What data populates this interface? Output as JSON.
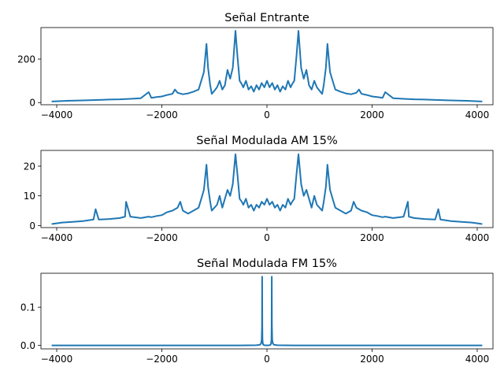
{
  "chart_data": [
    {
      "type": "line",
      "title": "Señal Entrante",
      "xlabel": "",
      "ylabel": "",
      "xlim": [
        -4300,
        4300
      ],
      "ylim": [
        -10,
        345
      ],
      "xticks": [
        -4000,
        -2000,
        0,
        2000,
        4000
      ],
      "xtick_labels": [
        "−4000",
        "−2000",
        "0",
        "2000",
        "4000"
      ],
      "yticks": [
        0,
        200
      ],
      "ytick_labels": [
        "0",
        "200"
      ],
      "grid": false,
      "color": "#1f77b4",
      "series": [
        {
          "x": [
            -4096,
            -3800,
            -3500,
            -3200,
            -3000,
            -2800,
            -2600,
            -2400,
            -2250,
            -2200,
            -2100,
            -2000,
            -1900,
            -1800,
            -1750,
            -1700,
            -1600,
            -1500,
            -1400,
            -1300,
            -1250,
            -1200,
            -1150,
            -1120,
            -1080,
            -1050,
            -1000,
            -950,
            -900,
            -850,
            -800,
            -750,
            -700,
            -650,
            -600,
            -560,
            -520,
            -480,
            -450,
            -400,
            -350,
            -300,
            -250,
            -200,
            -150,
            -100,
            -50,
            0,
            50,
            100,
            150,
            200,
            250,
            300,
            350,
            400,
            450,
            480,
            520,
            560,
            600,
            650,
            700,
            750,
            800,
            850,
            900,
            950,
            1000,
            1050,
            1080,
            1120,
            1150,
            1200,
            1250,
            1300,
            1400,
            1500,
            1600,
            1700,
            1750,
            1800,
            1900,
            2000,
            2100,
            2200,
            2250,
            2400,
            2600,
            2800,
            3000,
            3200,
            3500,
            3800,
            4096
          ],
          "y": [
            5,
            8,
            10,
            12,
            14,
            15,
            17,
            20,
            48,
            22,
            25,
            28,
            35,
            40,
            60,
            45,
            38,
            42,
            50,
            60,
            100,
            140,
            270,
            160,
            80,
            40,
            55,
            70,
            100,
            60,
            80,
            150,
            110,
            160,
            330,
            210,
            100,
            85,
            70,
            100,
            60,
            75,
            50,
            80,
            60,
            90,
            70,
            100,
            70,
            90,
            60,
            80,
            50,
            75,
            60,
            100,
            70,
            85,
            100,
            210,
            330,
            160,
            110,
            150,
            80,
            60,
            100,
            70,
            55,
            40,
            80,
            160,
            270,
            140,
            100,
            60,
            50,
            42,
            38,
            45,
            60,
            40,
            35,
            28,
            25,
            22,
            48,
            20,
            17,
            15,
            14,
            12,
            10,
            8,
            5
          ]
        }
      ]
    },
    {
      "type": "line",
      "title": "Señal Modulada AM 15%",
      "xlabel": "",
      "ylabel": "",
      "xlim": [
        -4300,
        4300
      ],
      "ylim": [
        -0.7,
        25.3
      ],
      "xticks": [
        -4000,
        -2000,
        0,
        2000,
        4000
      ],
      "xtick_labels": [
        "−4000",
        "−2000",
        "0",
        "2000",
        "4000"
      ],
      "yticks": [
        0,
        10,
        20
      ],
      "ytick_labels": [
        "0",
        "10",
        "20"
      ],
      "grid": false,
      "color": "#1f77b4",
      "series": [
        {
          "x": [
            -4096,
            -3900,
            -3700,
            -3500,
            -3300,
            -3260,
            -3200,
            -3000,
            -2800,
            -2700,
            -2680,
            -2600,
            -2400,
            -2250,
            -2200,
            -2100,
            -2000,
            -1900,
            -1800,
            -1700,
            -1650,
            -1600,
            -1500,
            -1400,
            -1300,
            -1250,
            -1200,
            -1150,
            -1120,
            -1080,
            -1050,
            -1000,
            -950,
            -900,
            -850,
            -800,
            -750,
            -700,
            -650,
            -600,
            -560,
            -520,
            -480,
            -450,
            -400,
            -350,
            -300,
            -250,
            -200,
            -150,
            -100,
            -50,
            0,
            50,
            100,
            150,
            200,
            250,
            300,
            350,
            400,
            450,
            480,
            520,
            560,
            600,
            650,
            700,
            750,
            800,
            850,
            900,
            950,
            1000,
            1050,
            1080,
            1120,
            1150,
            1200,
            1250,
            1300,
            1400,
            1500,
            1600,
            1650,
            1700,
            1800,
            1900,
            2000,
            2100,
            2200,
            2250,
            2400,
            2600,
            2680,
            2700,
            2800,
            3000,
            3200,
            3260,
            3300,
            3500,
            3700,
            3900,
            4096
          ],
          "y": [
            0.5,
            1,
            1.2,
            1.5,
            2,
            5.5,
            2,
            2.2,
            2.5,
            3,
            8,
            3,
            2.5,
            3,
            2.8,
            3.2,
            3.5,
            4.5,
            5,
            6,
            8,
            5,
            4,
            5,
            6,
            9,
            12,
            20.5,
            13,
            8,
            5,
            6,
            7,
            10,
            6,
            9,
            12,
            10,
            14,
            24,
            17,
            9,
            8,
            7,
            9,
            6,
            7,
            5,
            7,
            6,
            8,
            7,
            9,
            7,
            8,
            6,
            7,
            5,
            7,
            6,
            9,
            7,
            8,
            9,
            17,
            24,
            14,
            10,
            12,
            9,
            6,
            10,
            7,
            6,
            5,
            8,
            13,
            20.5,
            12,
            9,
            6,
            5,
            4,
            5,
            8,
            6,
            5,
            4.5,
            3.5,
            3.2,
            2.8,
            3,
            2.5,
            3,
            8,
            3,
            2.5,
            2.2,
            2,
            5.5,
            2,
            1.5,
            1.2,
            1,
            0.5
          ]
        }
      ]
    },
    {
      "type": "line",
      "title": "Señal Modulada FM 15%",
      "xlabel": "",
      "ylabel": "",
      "xlim": [
        -4300,
        4300
      ],
      "ylim": [
        -0.009,
        0.189
      ],
      "xticks": [
        -4000,
        -2000,
        0,
        2000,
        4000
      ],
      "xtick_labels": [
        "−4000",
        "−2000",
        "0",
        "2000",
        "4000"
      ],
      "yticks": [
        0.0,
        0.1
      ],
      "ytick_labels": [
        "0.0",
        "0.1"
      ],
      "grid": false,
      "color": "#1f77b4",
      "series": [
        {
          "x": [
            -4096,
            -2000,
            -500,
            -200,
            -130,
            -110,
            -100,
            -95,
            -92,
            -88,
            -85,
            -80,
            -70,
            -50,
            0,
            50,
            70,
            80,
            85,
            88,
            92,
            95,
            100,
            110,
            130,
            200,
            500,
            2000,
            4096
          ],
          "y": [
            0.0,
            0.0,
            0.0,
            0.0005,
            0.002,
            0.006,
            0.015,
            0.05,
            0.18,
            0.05,
            0.015,
            0.006,
            0.002,
            0.0005,
            0.0,
            0.0005,
            0.002,
            0.006,
            0.015,
            0.05,
            0.18,
            0.05,
            0.015,
            0.006,
            0.002,
            0.0005,
            0.0,
            0.0,
            0.0
          ]
        }
      ]
    }
  ]
}
